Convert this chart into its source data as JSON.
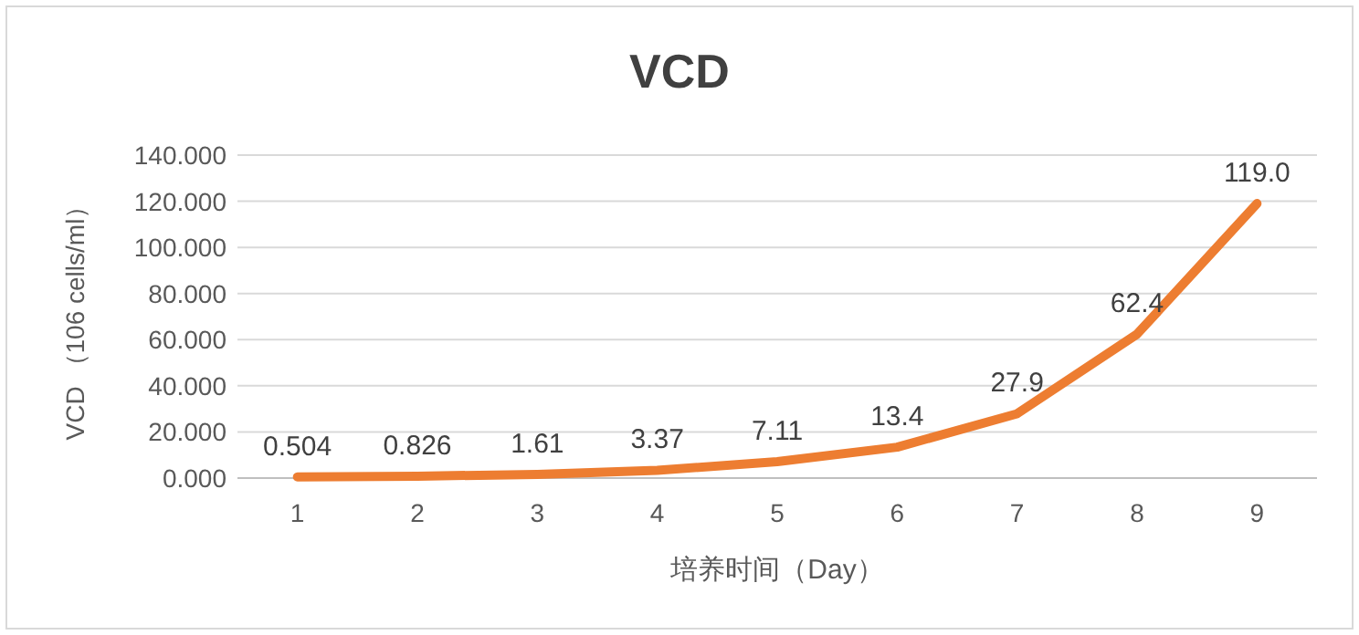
{
  "chart_data": {
    "type": "line",
    "title": "VCD",
    "xlabel": "培养时间（Day）",
    "ylabel": "VCD （106 cells/ml）",
    "categories": [
      "1",
      "2",
      "3",
      "4",
      "5",
      "6",
      "7",
      "8",
      "9"
    ],
    "series": [
      {
        "color": "#ed7d31",
        "values": [
          0.504,
          0.826,
          1.61,
          3.37,
          7.11,
          13.4,
          27.9,
          62.4,
          119.0
        ],
        "value_labels": [
          "0.504",
          "0.826",
          "1.61",
          "3.37",
          "7.11",
          "13.4",
          "27.9",
          "62.4",
          "119.0"
        ]
      }
    ],
    "ylim": [
      0,
      140
    ],
    "yticks": [
      {
        "value": 0,
        "label": "0.000"
      },
      {
        "value": 20,
        "label": "20.000"
      },
      {
        "value": 40,
        "label": "40.000"
      },
      {
        "value": 60,
        "label": "60.000"
      },
      {
        "value": 80,
        "label": "80.000"
      },
      {
        "value": 100,
        "label": "100.000"
      },
      {
        "value": 120,
        "label": "120.000"
      },
      {
        "value": 140,
        "label": "140.000"
      }
    ],
    "grid": "y",
    "marker": "none",
    "line_style": "solid"
  }
}
